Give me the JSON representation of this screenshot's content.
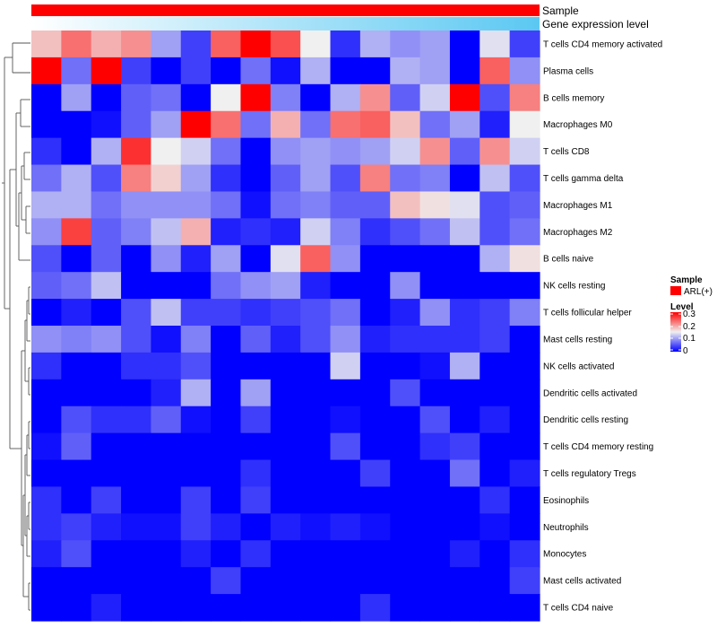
{
  "annotations": {
    "sample_label": "Sample",
    "expression_label": "Gene expression level"
  },
  "legend": {
    "sample_title": "Sample",
    "sample_entry": "ARL(+)",
    "level_title": "Level",
    "ticks": [
      "0.3",
      "0.2",
      "0.1",
      "0"
    ]
  },
  "colors": {
    "sample": "#ff0000",
    "low": "#0000ff",
    "mid": "#f0f0f0",
    "high": "#ff0000",
    "expression_gradient": [
      "#ffffff",
      "#5bc8f2"
    ]
  },
  "chart_data": {
    "type": "heatmap",
    "title": "",
    "color_scale": {
      "min": 0,
      "mid": 0.15,
      "max": 0.3,
      "ticks": [
        0.3,
        0.2,
        0.1,
        0
      ]
    },
    "n_columns": 17,
    "rows": [
      "T cells CD4 memory activated",
      "Plasma cells",
      "B cells memory",
      "Macrophages M0",
      "T cells CD8",
      "T cells gamma delta",
      "Macrophages M1",
      "Macrophages M2",
      "B cells naive",
      "NK cells resting",
      "T cells follicular helper",
      "Mast cells resting",
      "NK cells activated",
      "Dendritic cells activated",
      "Dendritic cells resting",
      "T cells CD4 memory resting",
      "T cells regulatory  Tregs",
      "Eosinophils",
      "Neutrophils",
      "Monocytes",
      "Mast cells activated",
      "T cells CD4 naive"
    ],
    "values": [
      [
        0.18,
        0.23,
        0.19,
        0.21,
        0.1,
        0.04,
        0.24,
        0.3,
        0.25,
        0.15,
        0.03,
        0.11,
        0.09,
        0.1,
        0.0,
        0.14,
        0.04
      ],
      [
        0.3,
        0.07,
        0.3,
        0.04,
        0.0,
        0.04,
        0.0,
        0.07,
        0.01,
        0.11,
        0.0,
        0.0,
        0.11,
        0.1,
        0.0,
        0.24,
        0.09
      ],
      [
        0.0,
        0.1,
        0.0,
        0.06,
        0.07,
        0.0,
        0.15,
        0.3,
        0.08,
        0.0,
        0.11,
        0.21,
        0.06,
        0.13,
        0.3,
        0.05,
        0.22
      ],
      [
        0.0,
        0.0,
        0.01,
        0.06,
        0.1,
        0.3,
        0.23,
        0.07,
        0.19,
        0.07,
        0.23,
        0.24,
        0.18,
        0.07,
        0.1,
        0.02,
        0.15
      ],
      [
        0.03,
        0.0,
        0.11,
        0.27,
        0.15,
        0.13,
        0.07,
        0.0,
        0.09,
        0.1,
        0.09,
        0.1,
        0.13,
        0.21,
        0.06,
        0.21,
        0.13
      ],
      [
        0.07,
        0.11,
        0.05,
        0.22,
        0.17,
        0.1,
        0.03,
        0.0,
        0.06,
        0.1,
        0.05,
        0.22,
        0.07,
        0.08,
        0.0,
        0.12,
        0.05
      ],
      [
        0.11,
        0.11,
        0.07,
        0.09,
        0.09,
        0.09,
        0.07,
        0.01,
        0.07,
        0.08,
        0.06,
        0.06,
        0.18,
        0.16,
        0.14,
        0.05,
        0.06
      ],
      [
        0.09,
        0.26,
        0.06,
        0.08,
        0.12,
        0.19,
        0.02,
        0.03,
        0.02,
        0.13,
        0.08,
        0.03,
        0.05,
        0.07,
        0.12,
        0.05,
        0.07
      ],
      [
        0.05,
        0.0,
        0.06,
        0.0,
        0.09,
        0.02,
        0.1,
        0.0,
        0.14,
        0.24,
        0.09,
        0.0,
        0.0,
        0.0,
        0.0,
        0.11,
        0.16
      ],
      [
        0.06,
        0.07,
        0.12,
        0.0,
        0.0,
        0.0,
        0.07,
        0.09,
        0.1,
        0.02,
        0.0,
        0.0,
        0.09,
        0.0,
        0.0,
        0.0,
        0.0
      ],
      [
        0.0,
        0.02,
        0.0,
        0.05,
        0.12,
        0.04,
        0.04,
        0.03,
        0.04,
        0.05,
        0.07,
        0.0,
        0.02,
        0.09,
        0.03,
        0.04,
        0.08
      ],
      [
        0.09,
        0.08,
        0.09,
        0.05,
        0.01,
        0.08,
        0.0,
        0.06,
        0.02,
        0.05,
        0.09,
        0.02,
        0.03,
        0.03,
        0.03,
        0.04,
        0.0
      ],
      [
        0.03,
        0.0,
        0.0,
        0.03,
        0.03,
        0.05,
        0.0,
        0.0,
        0.0,
        0.0,
        0.13,
        0.0,
        0.0,
        0.01,
        0.11,
        0.0,
        0.0
      ],
      [
        0.0,
        0.0,
        0.0,
        0.0,
        0.02,
        0.11,
        0.0,
        0.1,
        0.0,
        0.0,
        0.0,
        0.0,
        0.05,
        0.0,
        0.0,
        0.0,
        0.0
      ],
      [
        0.0,
        0.05,
        0.03,
        0.03,
        0.06,
        0.01,
        0.0,
        0.04,
        0.0,
        0.0,
        0.01,
        0.0,
        0.0,
        0.05,
        0.0,
        0.02,
        0.0
      ],
      [
        0.01,
        0.06,
        0.0,
        0.0,
        0.0,
        0.0,
        0.0,
        0.0,
        0.0,
        0.0,
        0.05,
        0.0,
        0.0,
        0.03,
        0.04,
        0.0,
        0.0
      ],
      [
        0.0,
        0.0,
        0.0,
        0.0,
        0.0,
        0.0,
        0.0,
        0.03,
        0.0,
        0.0,
        0.0,
        0.04,
        0.0,
        0.0,
        0.07,
        0.0,
        0.02
      ],
      [
        0.03,
        0.0,
        0.04,
        0.0,
        0.0,
        0.04,
        0.0,
        0.04,
        0.0,
        0.0,
        0.0,
        0.0,
        0.0,
        0.0,
        0.0,
        0.03,
        0.0
      ],
      [
        0.03,
        0.04,
        0.02,
        0.01,
        0.01,
        0.04,
        0.02,
        0.0,
        0.02,
        0.01,
        0.02,
        0.01,
        0.0,
        0.0,
        0.0,
        0.01,
        0.0
      ],
      [
        0.02,
        0.05,
        0.0,
        0.0,
        0.0,
        0.02,
        0.0,
        0.03,
        0.0,
        0.0,
        0.0,
        0.0,
        0.0,
        0.0,
        0.02,
        0.0,
        0.03
      ],
      [
        0.0,
        0.0,
        0.0,
        0.0,
        0.0,
        0.0,
        0.04,
        0.0,
        0.0,
        0.0,
        0.0,
        0.0,
        0.0,
        0.0,
        0.0,
        0.0,
        0.04
      ],
      [
        0.0,
        0.0,
        0.02,
        0.0,
        0.0,
        0.0,
        0.0,
        0.0,
        0.0,
        0.0,
        0.0,
        0.03,
        0.0,
        0.0,
        0.0,
        0.0,
        0.0
      ]
    ]
  }
}
